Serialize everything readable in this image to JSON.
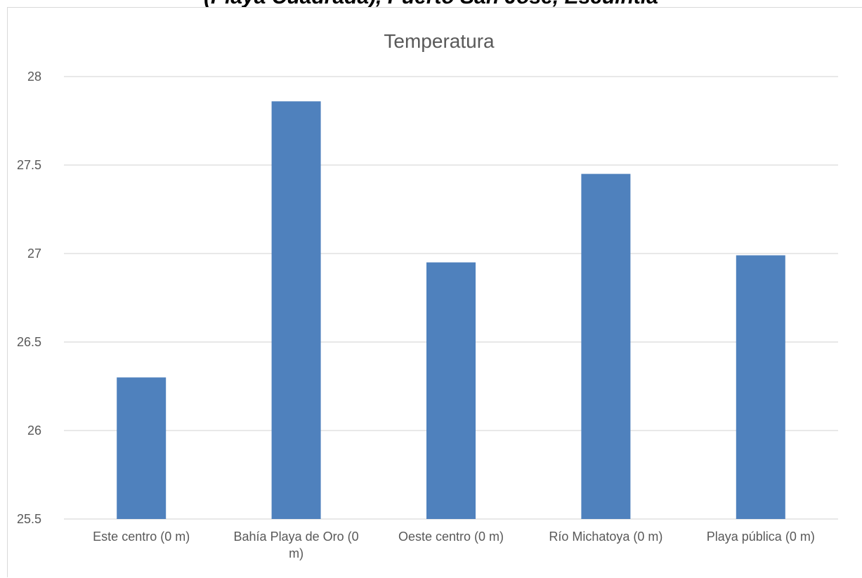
{
  "page": {
    "clipped_heading": "(Playa Cuadrada), Puerto San José, Escuintla"
  },
  "chart_data": {
    "type": "bar",
    "title": "Temperatura",
    "categories": [
      [
        "Este centro (0 m)"
      ],
      [
        "Bahía Playa de Oro (0",
        "m)"
      ],
      [
        "Oeste centro (0 m)"
      ],
      [
        "Río Michatoya (0 m)"
      ],
      [
        "Playa pública (0 m)"
      ]
    ],
    "values": [
      26.3,
      27.86,
      26.95,
      27.45,
      26.99
    ],
    "ylim": [
      25.5,
      28
    ],
    "yticks": [
      "25.5",
      "26",
      "26.5",
      "27",
      "27.5",
      "28"
    ],
    "grid": true,
    "legend": "none",
    "bar_color": "#4f81bd",
    "grid_color": "#d9d9d9"
  }
}
